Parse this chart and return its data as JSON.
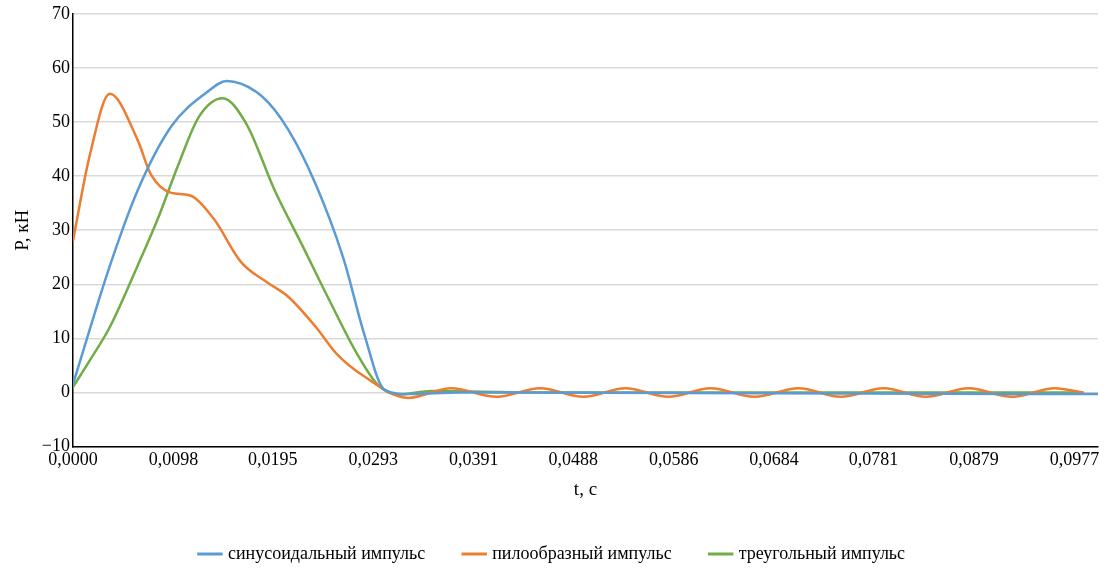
{
  "chart_data": {
    "type": "line",
    "xlabel": "t, с",
    "ylabel": "P, кН",
    "xlim": [
      0,
      0.1
    ],
    "xticks": [
      {
        "value": 0,
        "label": "0,0000"
      },
      {
        "value": 0.0098,
        "label": "0,0098"
      },
      {
        "value": 0.0195,
        "label": "0,0195"
      },
      {
        "value": 0.0293,
        "label": "0,0293"
      },
      {
        "value": 0.0391,
        "label": "0,0391"
      },
      {
        "value": 0.0488,
        "label": "0,0488"
      },
      {
        "value": 0.0586,
        "label": "0,0586"
      },
      {
        "value": 0.0684,
        "label": "0,0684"
      },
      {
        "value": 0.0781,
        "label": "0,0781"
      },
      {
        "value": 0.0879,
        "label": "0,0879"
      },
      {
        "value": 0.0977,
        "label": "0,0977"
      }
    ],
    "ylim": [
      -10,
      70
    ],
    "yticks": [
      {
        "value": -10,
        "label": "−10"
      },
      0,
      10,
      20,
      30,
      40,
      50,
      60,
      70
    ],
    "grid": "y",
    "legend": "bottom",
    "marker": "none",
    "line_style": "solid",
    "series": [
      {
        "name": "синусоидальный импульс",
        "color": "#5b9bd5",
        "x": [
          0,
          0.0036,
          0.0063,
          0.0096,
          0.013,
          0.015,
          0.0184,
          0.021,
          0.0237,
          0.0264,
          0.0284,
          0.0304,
          0.0327,
          0.0378,
          0.1
        ],
        "values": [
          1.5,
          23.4,
          37.3,
          49.2,
          55.4,
          57.6,
          54.8,
          48.6,
          38.4,
          24.7,
          10.9,
          0.5,
          -0.3,
          0,
          -0.3
        ]
      },
      {
        "name": "пилообразный импульс",
        "color": "#ed7d31",
        "x": [
          0,
          0.0016,
          0.0036,
          0.0063,
          0.0076,
          0.0096,
          0.0113,
          0.0137,
          0.0164,
          0.019,
          0.021,
          0.0237,
          0.0257,
          0.0284,
          0.0327,
          0.0369,
          0.0413,
          0.0456,
          0.0498,
          0.0539,
          0.0581,
          0.0622,
          0.0665,
          0.0708,
          0.0749,
          0.0791,
          0.0832,
          0.0874,
          0.0916,
          0.0958,
          0.0985
        ],
        "values": [
          28,
          43.5,
          55.2,
          46.7,
          40.3,
          36.9,
          36.5,
          32.2,
          24.1,
          20.3,
          17.7,
          12.1,
          7.2,
          3,
          -1,
          0.8,
          -0.8,
          0.8,
          -0.8,
          0.8,
          -0.8,
          0.8,
          -0.8,
          0.8,
          -0.8,
          0.8,
          -0.8,
          0.8,
          -0.8,
          0.8,
          0
        ]
      },
      {
        "name": "треугольный импульс",
        "color": "#70ad47",
        "x": [
          0,
          0.0016,
          0.0036,
          0.0063,
          0.0083,
          0.0103,
          0.0123,
          0.0146,
          0.0169,
          0.0197,
          0.0224,
          0.025,
          0.0277,
          0.0297,
          0.0317,
          0.035,
          0.045,
          0.06,
          0.08,
          0.0985
        ],
        "values": [
          1,
          5.8,
          12.1,
          23.4,
          32.2,
          42.2,
          51,
          54.4,
          49.7,
          37.3,
          27.1,
          17.1,
          7.2,
          1.5,
          -0.4,
          0.3,
          0,
          0,
          0,
          0
        ]
      }
    ]
  }
}
